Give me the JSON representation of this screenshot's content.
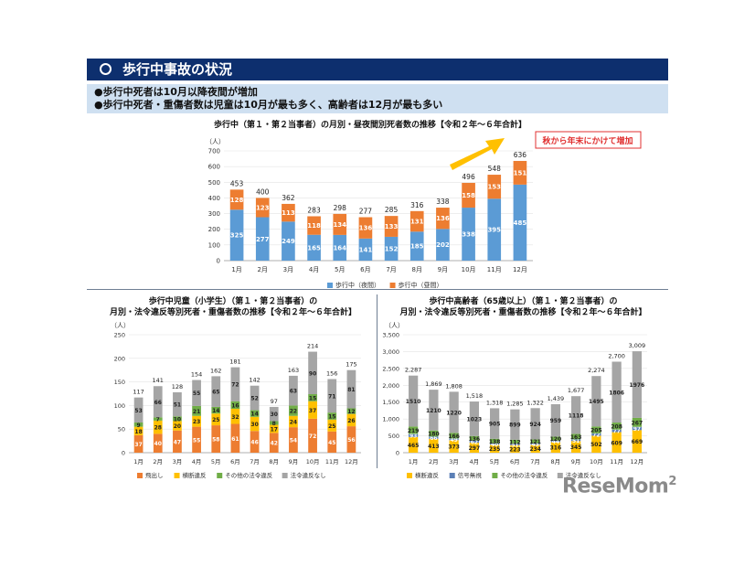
{
  "header": {
    "title": "歩行中事故の状況"
  },
  "summary": {
    "line1": "●歩行中死者は10月以降夜間が増加",
    "line2": "●歩行中死者・重傷者数は児童は10月が最も多く、高齢者は12月が最も多い"
  },
  "logo": {
    "text": "ReseMom",
    "sup": "2"
  },
  "colors": {
    "header_bg": "#0d2f6e",
    "summary_bg": "#cfe0f1",
    "blue": "#5b9bd5",
    "orange": "#ed7d31",
    "gray": "#a5a5a5",
    "yellow": "#ffc000",
    "green": "#70ad47",
    "accent": "#ffc000"
  },
  "chart_data": [
    {
      "type": "bar",
      "stacked": true,
      "title": "歩行中（第１・第２当事者）の月別・昼夜間別死者数の推移【令和２年～６年合計】",
      "unit": "（人）",
      "categories": [
        "1月",
        "2月",
        "3月",
        "4月",
        "5月",
        "6月",
        "7月",
        "8月",
        "9月",
        "10月",
        "11月",
        "12月"
      ],
      "series": [
        {
          "name": "歩行中（夜間）",
          "color": "#5b9bd5",
          "values": [
            325,
            277,
            249,
            165,
            164,
            141,
            152,
            185,
            202,
            338,
            395,
            485
          ]
        },
        {
          "name": "歩行中（昼間）",
          "color": "#ed7d31",
          "values": [
            128,
            123,
            113,
            118,
            134,
            136,
            133,
            131,
            136,
            158,
            153,
            151
          ]
        }
      ],
      "totals": [
        453,
        400,
        362,
        283,
        298,
        277,
        285,
        316,
        338,
        496,
        548,
        636
      ],
      "ylim": [
        0,
        700
      ],
      "yticks": [
        0,
        100,
        200,
        300,
        400,
        500,
        600,
        700
      ],
      "legend": "bottom",
      "annotation": "秋から年末にかけて増加"
    },
    {
      "type": "bar",
      "stacked": true,
      "title_line1": "歩行中児童（小学生）（第１・第２当事者）の",
      "title_line2": "月別・法令違反等別死者・重傷者数の推移【令和２年～６年合計】",
      "unit": "（人）",
      "categories": [
        "1月",
        "2月",
        "3月",
        "4月",
        "5月",
        "6月",
        "7月",
        "8月",
        "9月",
        "10月",
        "11月",
        "12月"
      ],
      "series": [
        {
          "name": "飛出し",
          "color": "#ed7d31",
          "values": [
            37,
            40,
            47,
            55,
            58,
            61,
            46,
            42,
            54,
            72,
            45,
            56
          ]
        },
        {
          "name": "横断違反",
          "color": "#ffc000",
          "values": [
            18,
            28,
            20,
            23,
            25,
            32,
            30,
            17,
            24,
            37,
            25,
            26
          ]
        },
        {
          "name": "その他の法令違反",
          "color": "#70ad47",
          "values": [
            9,
            7,
            10,
            21,
            14,
            16,
            14,
            8,
            22,
            15,
            15,
            12
          ]
        },
        {
          "name": "法令違反なし",
          "color": "#a5a5a5",
          "values": [
            53,
            66,
            51,
            55,
            65,
            72,
            52,
            30,
            63,
            90,
            71,
            81
          ]
        }
      ],
      "totals": [
        117,
        141,
        128,
        154,
        162,
        181,
        142,
        97,
        163,
        214,
        156,
        175
      ],
      "ylim": [
        0,
        250
      ],
      "yticks": [
        0,
        50,
        100,
        150,
        200,
        250
      ],
      "legend": "bottom"
    },
    {
      "type": "bar",
      "stacked": true,
      "title_line1": "歩行中高齢者（65歳以上）（第１・第２当事者）の",
      "title_line2": "月別・法令違反等別死者・重傷者数の推移【令和２年～６年合計】",
      "unit": "（人）",
      "categories": [
        "1月",
        "2月",
        "3月",
        "4月",
        "5月",
        "6月",
        "7月",
        "8月",
        "9月",
        "10月",
        "11月",
        "12月"
      ],
      "series": [
        {
          "name": "横断違反",
          "color": "#ffc000",
          "values": [
            465,
            413,
            373,
            297,
            235,
            223,
            234,
            316,
            345,
            502,
            609,
            669
          ]
        },
        {
          "name": "信号無視",
          "color": "#5b7fb6",
          "values": [
            93,
            66,
            49,
            62,
            40,
            51,
            43,
            44,
            51,
            72,
            77,
            97
          ]
        },
        {
          "name": "その他の法令違反",
          "color": "#70ad47",
          "values": [
            219,
            180,
            166,
            136,
            138,
            112,
            121,
            120,
            163,
            205,
            208,
            267
          ]
        },
        {
          "name": "法令違反なし",
          "color": "#a5a5a5",
          "values": [
            1510,
            1210,
            1220,
            1023,
            905,
            899,
            924,
            959,
            1118,
            1495,
            1806,
            1976
          ]
        }
      ],
      "totals": [
        "2,287",
        "1,869",
        "1,808",
        "1,518",
        "1,318",
        "1,285",
        "1,322",
        "1,439",
        "1,677",
        "2,274",
        "2,700",
        "3,009"
      ],
      "ylim": [
        0,
        3500
      ],
      "yticks": [
        "0",
        "500",
        "1,000",
        "1,500",
        "2,000",
        "2,500",
        "3,000",
        "3,500"
      ],
      "legend": "bottom"
    }
  ]
}
